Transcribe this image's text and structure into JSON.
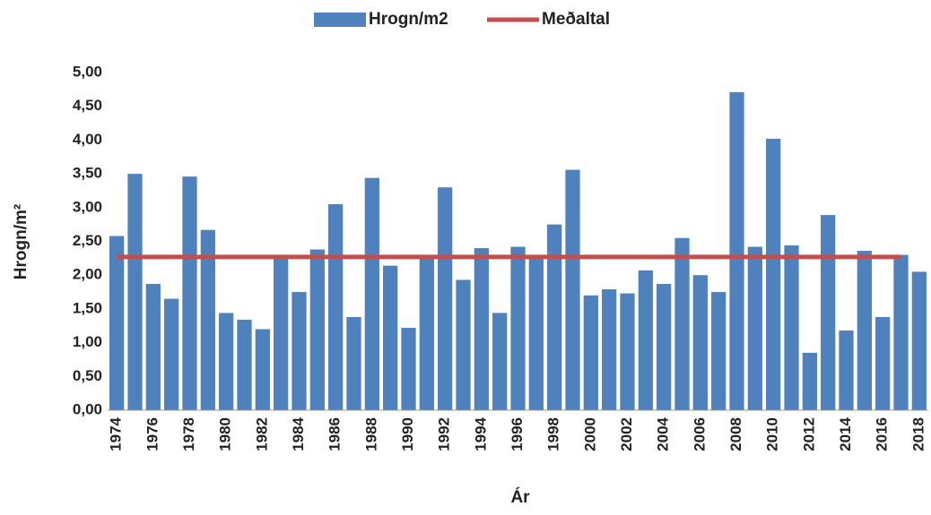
{
  "chart_data": {
    "type": "bar",
    "categories": [
      "1974",
      null,
      "1976",
      null,
      "1978",
      null,
      "1980",
      null,
      "1982",
      null,
      "1984",
      null,
      "1986",
      null,
      "1988",
      null,
      "1990",
      null,
      "1992",
      null,
      "1994",
      null,
      "1996",
      null,
      "1998",
      null,
      "2000",
      null,
      "2002",
      null,
      "2004",
      null,
      "2006",
      null,
      "2008",
      null,
      "2010",
      null,
      "2012",
      null,
      "2014",
      null,
      "2016",
      null,
      "2018"
    ],
    "series": [
      {
        "name": "Hrogn/m2",
        "type": "bar",
        "color": "#4f81bd",
        "values": [
          2.58,
          3.5,
          1.87,
          1.65,
          3.46,
          2.67,
          1.44,
          1.34,
          1.2,
          2.25,
          1.75,
          2.38,
          3.05,
          1.38,
          3.44,
          2.14,
          1.22,
          2.27,
          3.3,
          1.93,
          2.4,
          1.44,
          2.42,
          2.25,
          2.75,
          3.56,
          1.7,
          1.79,
          1.73,
          2.07,
          1.87,
          2.55,
          2.0,
          1.75,
          4.71,
          2.42,
          4.02,
          2.44,
          0.85,
          2.89,
          1.18,
          2.36,
          1.38,
          2.3,
          2.05
        ]
      },
      {
        "name": "Meðaltal",
        "type": "line",
        "color": "#c0504d",
        "values": [
          2.27,
          2.27,
          2.27,
          2.27,
          2.27,
          2.27,
          2.27,
          2.27,
          2.27,
          2.27,
          2.27,
          2.27,
          2.27,
          2.27,
          2.27,
          2.27,
          2.27,
          2.27,
          2.27,
          2.27,
          2.27,
          2.27,
          2.27,
          2.27,
          2.27,
          2.27,
          2.27,
          2.27,
          2.27,
          2.27,
          2.27,
          2.27,
          2.27,
          2.27,
          2.27,
          2.27,
          2.27,
          2.27,
          2.27,
          2.27,
          2.27,
          2.27,
          2.27,
          2.27,
          null
        ]
      }
    ],
    "ylabel": "Hrogn/m²",
    "xlabel": "Ár",
    "ylim": [
      0,
      5
    ],
    "yticks": [
      {
        "value": 0,
        "label": "0,00"
      },
      {
        "value": 0.5,
        "label": "0,50"
      },
      {
        "value": 1,
        "label": "1,00"
      },
      {
        "value": 1.5,
        "label": "1,50"
      },
      {
        "value": 2,
        "label": "2,00"
      },
      {
        "value": 2.5,
        "label": "2,50"
      },
      {
        "value": 3,
        "label": "3,00"
      },
      {
        "value": 3.5,
        "label": "3,50"
      },
      {
        "value": 4,
        "label": "4,00"
      },
      {
        "value": 4.5,
        "label": "4,50"
      },
      {
        "value": 5,
        "label": "5,00"
      }
    ],
    "grid": false,
    "legend": "top"
  }
}
